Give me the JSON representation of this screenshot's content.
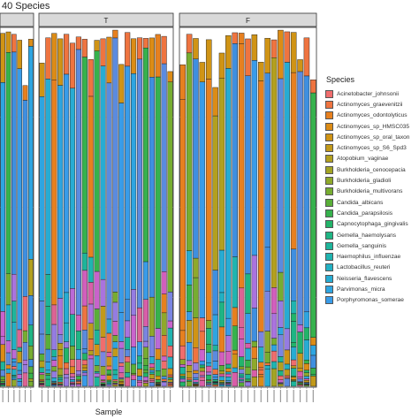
{
  "chart_data": {
    "type": "bar",
    "title": "40 Species",
    "xlabel": "Sample",
    "ylabel": "",
    "stacking": "relative abundance, stacked to total",
    "facets": [
      {
        "label": "",
        "n_samples": 6
      },
      {
        "label": "T",
        "n_samples": 22
      },
      {
        "label": "F",
        "n_samples": 21
      }
    ],
    "legend": {
      "title": "Species",
      "position": "right",
      "entries": [
        {
          "name": "Acinetobacter_johnsonii",
          "color": "#f06d6d"
        },
        {
          "name": "Actinomyces_graevenitzii",
          "color": "#ef7440"
        },
        {
          "name": "Actinomyces_odontolyticus",
          "color": "#e7801f"
        },
        {
          "name": "Actinomyces_sp_HMSC035",
          "color": "#dc8c16"
        },
        {
          "name": "Actinomyces_sp_oral_taxon",
          "color": "#d09415"
        },
        {
          "name": "Actinomyces_sp_S6_Spd3",
          "color": "#c29a1a"
        },
        {
          "name": "Atopobium_vaginae",
          "color": "#b3a01f"
        },
        {
          "name": "Burkholderia_cenocepacia",
          "color": "#a3a424"
        },
        {
          "name": "Burkholderia_gladioli",
          "color": "#8fa92b"
        },
        {
          "name": "Burkholderia_multivorans",
          "color": "#77ad31"
        },
        {
          "name": "Candida_albicans",
          "color": "#5aaf39"
        },
        {
          "name": "Candida_parapsilosis",
          "color": "#36b24d"
        },
        {
          "name": "Capnocytophaga_gingivalis",
          "color": "#22b46a"
        },
        {
          "name": "Gemella_haemolysans",
          "color": "#1fb584"
        },
        {
          "name": "Gemella_sanguinis",
          "color": "#1eb59b"
        },
        {
          "name": "Haemophilus_influenzae",
          "color": "#20b4b0"
        },
        {
          "name": "Lactobacillus_reuteri",
          "color": "#23b1c3"
        },
        {
          "name": "Neisseria_flavescens",
          "color": "#27acd3"
        },
        {
          "name": "Parvimonas_micra",
          "color": "#2ea5e1"
        },
        {
          "name": "Porphyromonas_somerae",
          "color": "#399ce9"
        }
      ]
    },
    "extra_colors": [
      "#3f8fe0",
      "#5b8bdf",
      "#7a85e2",
      "#957ce2",
      "#aa73de",
      "#bb6ad6",
      "#c963cc",
      "#d25fbd",
      "#d95ea9",
      "#dc6394"
    ],
    "grid": true
  }
}
